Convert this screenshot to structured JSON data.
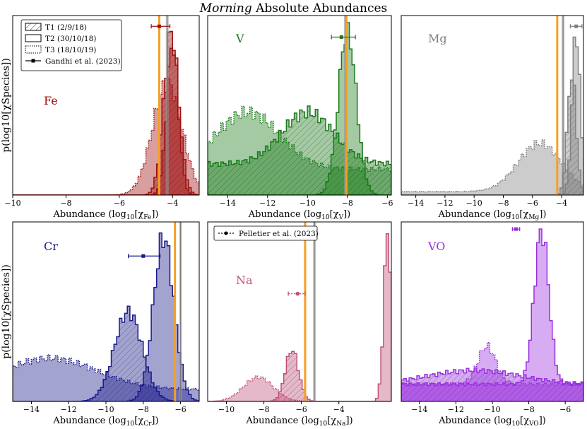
{
  "title_emph": "Morning",
  "title_rest": " Absolute Abundances",
  "ylabel": "p(log10[χSpecies])",
  "legend1": [
    {
      "label": "T1 (2/9/18)",
      "style": "hatched"
    },
    {
      "label": "T2 (30/10/18)",
      "style": "solid"
    },
    {
      "label": "T3 (18/10/19)",
      "style": "dotted"
    },
    {
      "label": "Gandhi et al. (2023)",
      "style": "errorbar"
    }
  ],
  "legend2": [
    {
      "label": "Pelletier et al. (2023)",
      "style": "errorbar-dotted"
    }
  ],
  "chart_data": [
    {
      "type": "histogram",
      "species": "Fe",
      "xlabel_prefix": "Abundance (log",
      "xlabel_sub_log": "10",
      "xlabel_chi": "[χ",
      "xlabel_sub": "Fe",
      "xlabel_suffix": "])",
      "color": "#a01010",
      "xlim": [
        -10,
        -3.0
      ],
      "xticks": [
        -10,
        -8,
        -6,
        -4
      ],
      "orange": -4.5,
      "grey": -4.2,
      "ref": {
        "x": -4.5,
        "lo": -4.8,
        "hi": -4.1
      },
      "ref_y": 0.94,
      "series": [
        {
          "name": "T1",
          "mu": -4.05,
          "sigma": 0.28,
          "amp": 0.95,
          "floor": 0
        },
        {
          "name": "T2",
          "mu": -4.0,
          "sigma": 0.22,
          "amp": 0.88,
          "floor": 0
        },
        {
          "name": "T3",
          "mu": -4.2,
          "sigma": 0.55,
          "amp": 0.65,
          "floor": 0
        }
      ]
    },
    {
      "type": "histogram",
      "species": "V",
      "xlabel_prefix": "Abundance (log",
      "xlabel_sub_log": "10",
      "xlabel_chi": "[χ",
      "xlabel_sub": "V",
      "xlabel_suffix": "])",
      "color": "#1a7a1a",
      "xlim": [
        -15,
        -5.8
      ],
      "xticks": [
        -14,
        -12,
        -10,
        -8,
        -6
      ],
      "orange": -8.05,
      "grey": -8.1,
      "ref": {
        "x": -8.3,
        "lo": -8.8,
        "hi": -7.6
      },
      "ref_y": 0.88,
      "series": [
        {
          "name": "T1",
          "mu": -10.0,
          "sigma": 1.3,
          "amp": 0.3,
          "floor": 0.18
        },
        {
          "name": "T2",
          "mu": -8.0,
          "sigma": 0.45,
          "amp": 0.95,
          "floor": 0
        },
        {
          "name": "T3",
          "mu": -13.0,
          "sigma": 1.6,
          "amp": 0.33,
          "floor": 0.15
        }
      ]
    },
    {
      "type": "histogram",
      "species": "Mg",
      "xlabel_prefix": "Abundance (log",
      "xlabel_sub_log": "10",
      "xlabel_chi": "[χ",
      "xlabel_sub": "Mg",
      "xlabel_suffix": "])",
      "color": "#808080",
      "xlim": [
        -15,
        -2.5
      ],
      "xticks": [
        -14,
        -12,
        -10,
        -8,
        -6,
        -4
      ],
      "orange": -4.3,
      "grey": -3.9,
      "ref": {
        "x": -3.0,
        "lo": -3.4,
        "hi": -2.6
      },
      "ref_y": 0.94,
      "series": [
        {
          "name": "T1",
          "mu": -3.3,
          "sigma": 0.3,
          "amp": 0.7,
          "floor": 0
        },
        {
          "name": "T2",
          "mu": -3.0,
          "sigma": 0.28,
          "amp": 0.95,
          "floor": 0
        },
        {
          "name": "T3",
          "mu": -5.5,
          "sigma": 1.5,
          "amp": 0.28,
          "floor": 0.02
        }
      ]
    },
    {
      "type": "histogram",
      "species": "Cr",
      "xlabel_prefix": "Abundance (log",
      "xlabel_sub_log": "10",
      "xlabel_chi": "[χ",
      "xlabel_sub": "Cr",
      "xlabel_suffix": "])",
      "color": "#1a1a8a",
      "xlim": [
        -15,
        -5.0
      ],
      "xticks": [
        -14,
        -12,
        -10,
        -8,
        -6
      ],
      "orange": -6.3,
      "grey": -6.0,
      "ref": {
        "x": -8.0,
        "lo": -8.8,
        "hi": -7.1
      },
      "ref_y": 0.81,
      "series": [
        {
          "name": "T1",
          "mu": -8.8,
          "sigma": 0.75,
          "amp": 0.52,
          "floor": 0
        },
        {
          "name": "T2",
          "mu": -6.9,
          "sigma": 0.55,
          "amp": 0.95,
          "floor": 0
        },
        {
          "name": "T3",
          "mu": -13.0,
          "sigma": 2.5,
          "amp": 0.18,
          "floor": 0.07
        }
      ]
    },
    {
      "type": "histogram",
      "species": "Na",
      "xlabel_prefix": "Abundance (log",
      "xlabel_sub_log": "10",
      "xlabel_chi": "[χ",
      "xlabel_sub": "Na",
      "xlabel_suffix": "])",
      "color": "#c0507a",
      "xlim": [
        -11,
        -1.2
      ],
      "xticks": [
        -10,
        -8,
        -6,
        -4
      ],
      "orange": -5.8,
      "grey": -5.3,
      "ref": {
        "x": -6.2,
        "lo": -6.7,
        "hi": -5.8
      },
      "ref_y": 0.6,
      "series": [
        {
          "name": "T1",
          "mu": -6.5,
          "sigma": 0.35,
          "amp": 0.3,
          "floor": 0
        },
        {
          "name": "T2",
          "mu": -1.4,
          "sigma": 0.2,
          "amp": 0.98,
          "floor": 0
        },
        {
          "name": "T3",
          "mu": -8.3,
          "sigma": 0.8,
          "amp": 0.14,
          "floor": 0
        }
      ]
    },
    {
      "type": "histogram",
      "species": "VO",
      "xlabel_prefix": "Abundance (log",
      "xlabel_sub_log": "10",
      "xlabel_chi": "[χ",
      "xlabel_sub": "VO",
      "xlabel_suffix": "])",
      "color": "#9b30e0",
      "xlim": [
        -15,
        -5.0
      ],
      "xticks": [
        -14,
        -12,
        -10,
        -8,
        -6
      ],
      "orange": null,
      "grey": null,
      "ref": {
        "x": -8.7,
        "lo": -8.9,
        "hi": -8.5
      },
      "ref_y": 0.96,
      "series": [
        {
          "name": "T1",
          "mu": -11.0,
          "sigma": 2.5,
          "amp": 0.08,
          "floor": 0.1
        },
        {
          "name": "T2",
          "mu": -7.3,
          "sigma": 0.4,
          "amp": 0.9,
          "floor": 0.1
        },
        {
          "name": "T3",
          "mu": -10.3,
          "sigma": 0.5,
          "amp": 0.22,
          "floor": 0.1
        }
      ]
    }
  ]
}
